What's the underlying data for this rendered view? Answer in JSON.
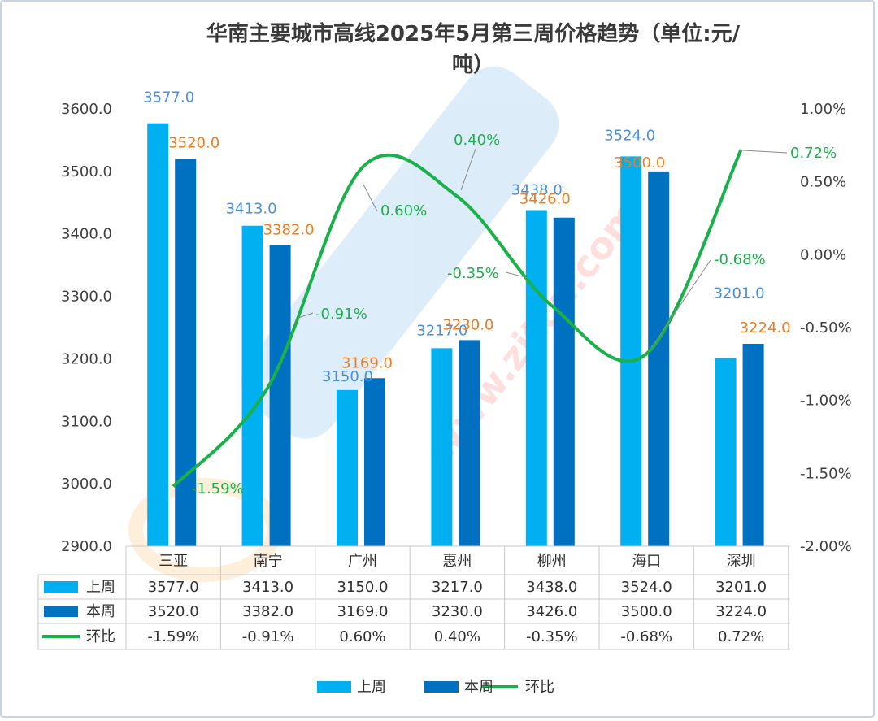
{
  "chart_data": {
    "type": "bar",
    "title_line1": "华南主要城市高线2025年5月第三周价格趋势（单位:元/",
    "title_line2": "吨）",
    "categories": [
      "三亚",
      "南宁",
      "广州",
      "惠州",
      "柳州",
      "海口",
      "深圳"
    ],
    "series": [
      {
        "name": "上周",
        "type": "bar",
        "values": [
          3577.0,
          3413.0,
          3150.0,
          3217.0,
          3438.0,
          3524.0,
          3201.0
        ],
        "color": "#00b0f0",
        "label_color": "#4a90d9"
      },
      {
        "name": "本周",
        "type": "bar",
        "values": [
          3520.0,
          3382.0,
          3169.0,
          3230.0,
          3426.0,
          3500.0,
          3224.0
        ],
        "color": "#0070c0",
        "label_color": "#f07c1e"
      },
      {
        "name": "环比",
        "type": "line",
        "axis": "right",
        "values": [
          -1.59,
          -0.91,
          0.6,
          0.4,
          -0.35,
          -0.68,
          0.72
        ],
        "color": "#19b14a",
        "label_color": "#19b14a"
      }
    ],
    "left_axis": {
      "ylim": [
        2900,
        3600
      ],
      "ticks": [
        "2900.0",
        "3000.0",
        "3100.0",
        "3200.0",
        "3300.0",
        "3400.0",
        "3500.0",
        "3600.0"
      ]
    },
    "right_axis": {
      "ylim": [
        -2.0,
        1.0
      ],
      "ticks": [
        "-2.00%",
        "-1.50%",
        "-1.00%",
        "-0.50%",
        "0.00%",
        "0.50%",
        "1.00%"
      ]
    },
    "data_table": [
      {
        "name": "上周",
        "cells": [
          "3577.0",
          "3413.0",
          "3150.0",
          "3217.0",
          "3438.0",
          "3524.0",
          "3201.0"
        ]
      },
      {
        "name": "本周",
        "cells": [
          "3520.0",
          "3382.0",
          "3169.0",
          "3230.0",
          "3426.0",
          "3500.0",
          "3224.0"
        ]
      },
      {
        "name": "环比",
        "cells": [
          "-1.59%",
          "-0.91%",
          "0.60%",
          "0.40%",
          "-0.35%",
          "-0.68%",
          "0.72%"
        ]
      }
    ],
    "legend": {
      "position": "bottom",
      "items": [
        "上周",
        "本周",
        "环比"
      ]
    },
    "grid": false,
    "watermark": "www.zitcn.com"
  }
}
